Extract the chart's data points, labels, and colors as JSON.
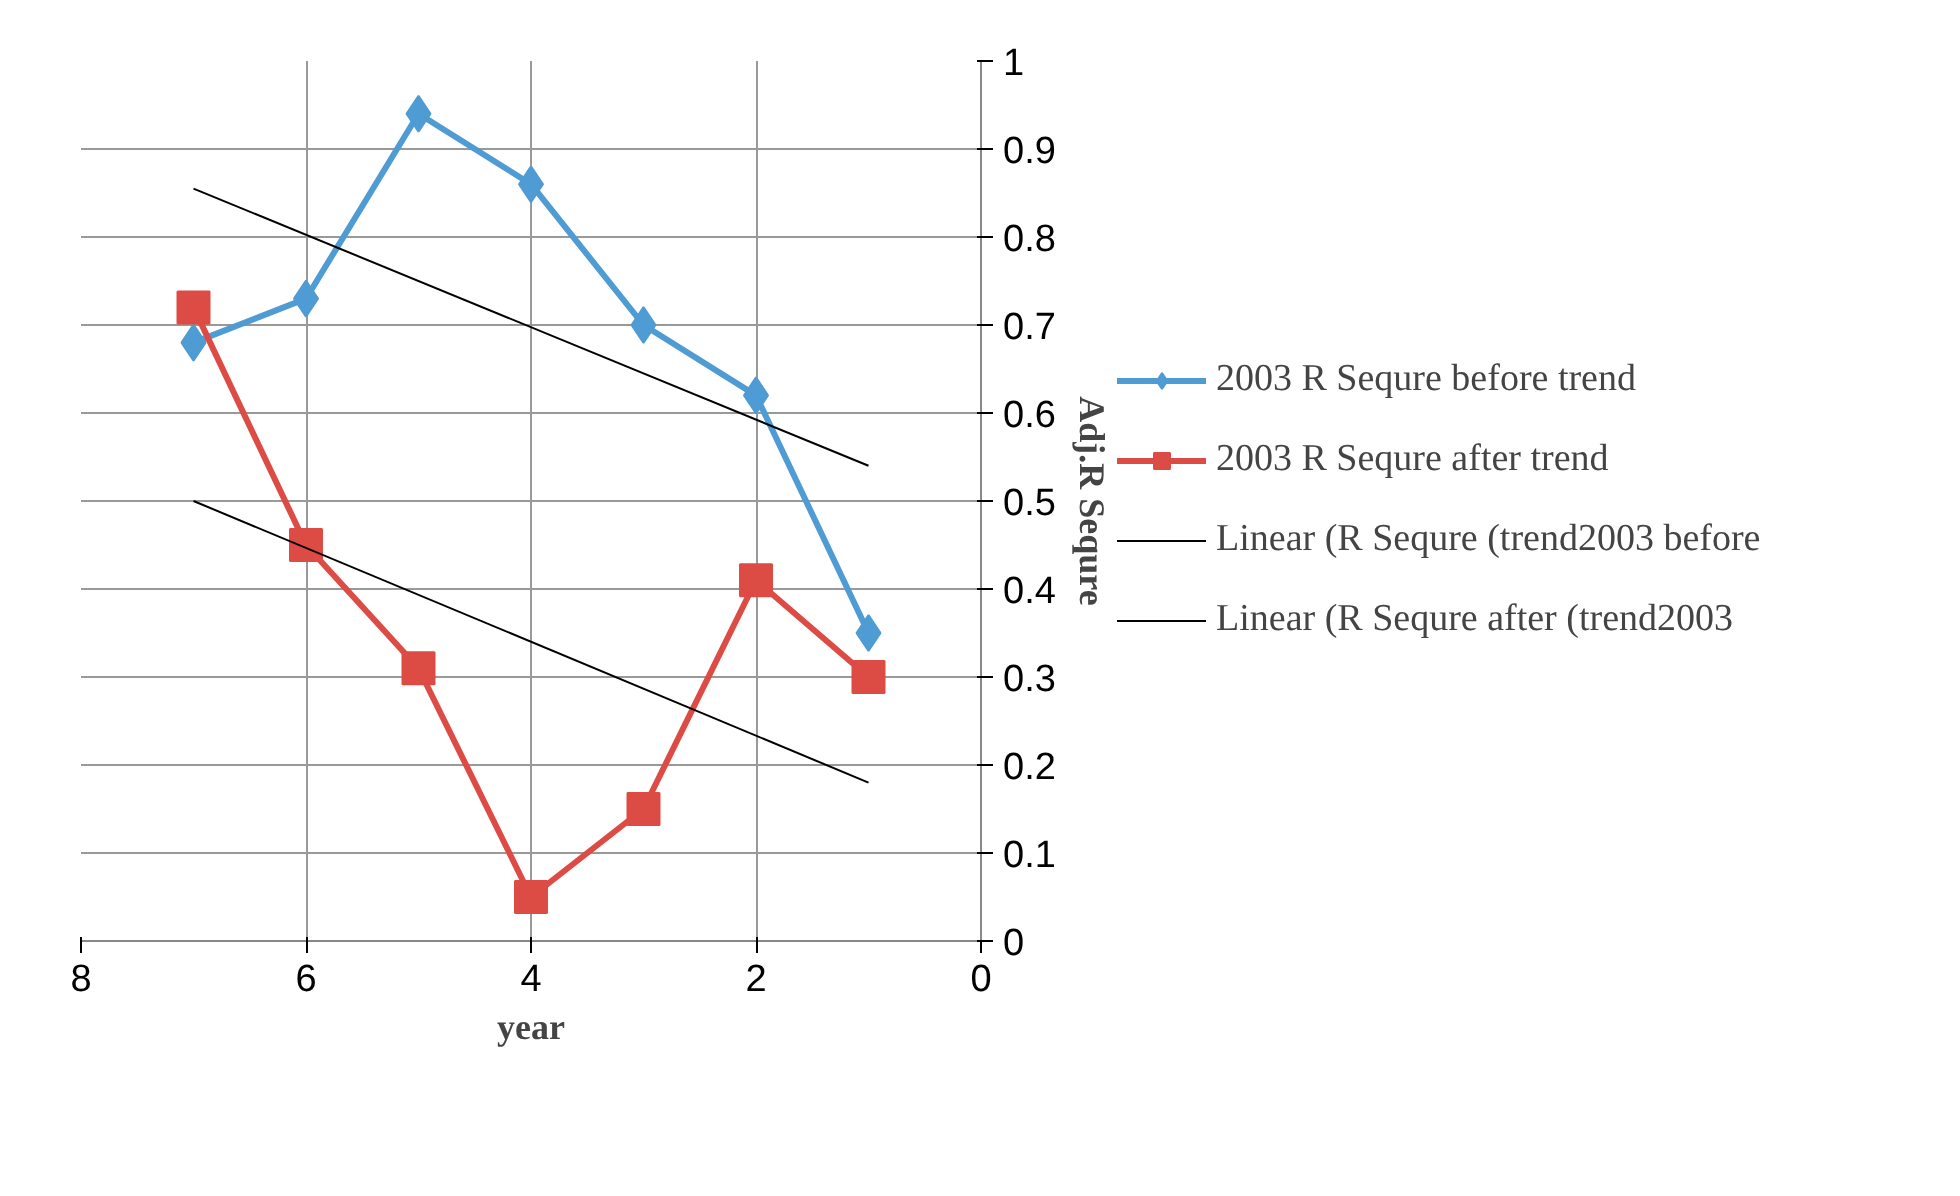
{
  "chart_data": {
    "type": "line",
    "xlabel": "year",
    "ylabel": "Adj.R Sequre",
    "xlim": [
      8,
      0
    ],
    "xticks": [
      8,
      6,
      4,
      2,
      0
    ],
    "ylim": [
      0,
      1
    ],
    "yticks": [
      0,
      0.1,
      0.2,
      0.3,
      0.4,
      0.5,
      0.6,
      0.7,
      0.8,
      0.9,
      1
    ],
    "grid": true,
    "legend": "right",
    "line_style": "solid",
    "series": [
      {
        "name": "2003 R Sequre before trend",
        "color": "#4f9bd4",
        "marker": "diamond",
        "x": [
          7,
          6,
          5,
          4,
          3,
          2,
          1
        ],
        "values": [
          0.68,
          0.73,
          0.94,
          0.86,
          0.7,
          0.62,
          0.35
        ]
      },
      {
        "name": "2003 R Sequre after trend",
        "color": "#dd4b45",
        "marker": "square",
        "x": [
          7,
          6,
          5,
          4,
          3,
          2,
          1
        ],
        "values": [
          0.72,
          0.45,
          0.31,
          0.05,
          0.15,
          0.41,
          0.3
        ]
      },
      {
        "name": "Linear (R Sequre (trend2003 before",
        "color": "#000000",
        "marker": "none",
        "x": [
          7,
          1
        ],
        "values": [
          0.855,
          0.54
        ]
      },
      {
        "name": "Linear (R Sequre after (trend2003",
        "color": "#000000",
        "marker": "none",
        "x": [
          7,
          1
        ],
        "values": [
          0.5,
          0.18
        ]
      }
    ]
  }
}
